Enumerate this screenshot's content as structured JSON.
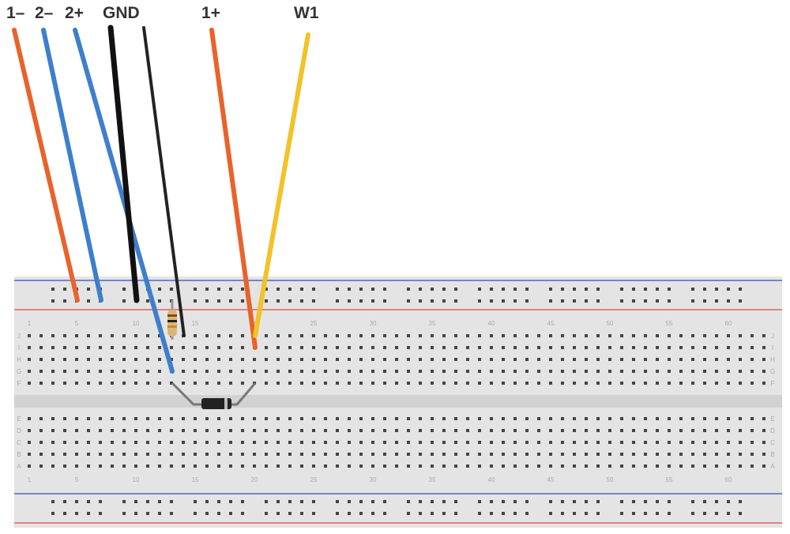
{
  "wire_labels": [
    "1–",
    "2–",
    "2+",
    "GND",
    "1+",
    "W1"
  ],
  "column_numbers": [
    "1",
    "5",
    "10",
    "15",
    "20",
    "25",
    "30",
    "35",
    "40",
    "45",
    "50",
    "55",
    "60"
  ],
  "row_letters_top": [
    "J",
    "I",
    "H",
    "G",
    "F"
  ],
  "row_letters_bottom": [
    "E",
    "D",
    "C",
    "B",
    "A"
  ]
}
